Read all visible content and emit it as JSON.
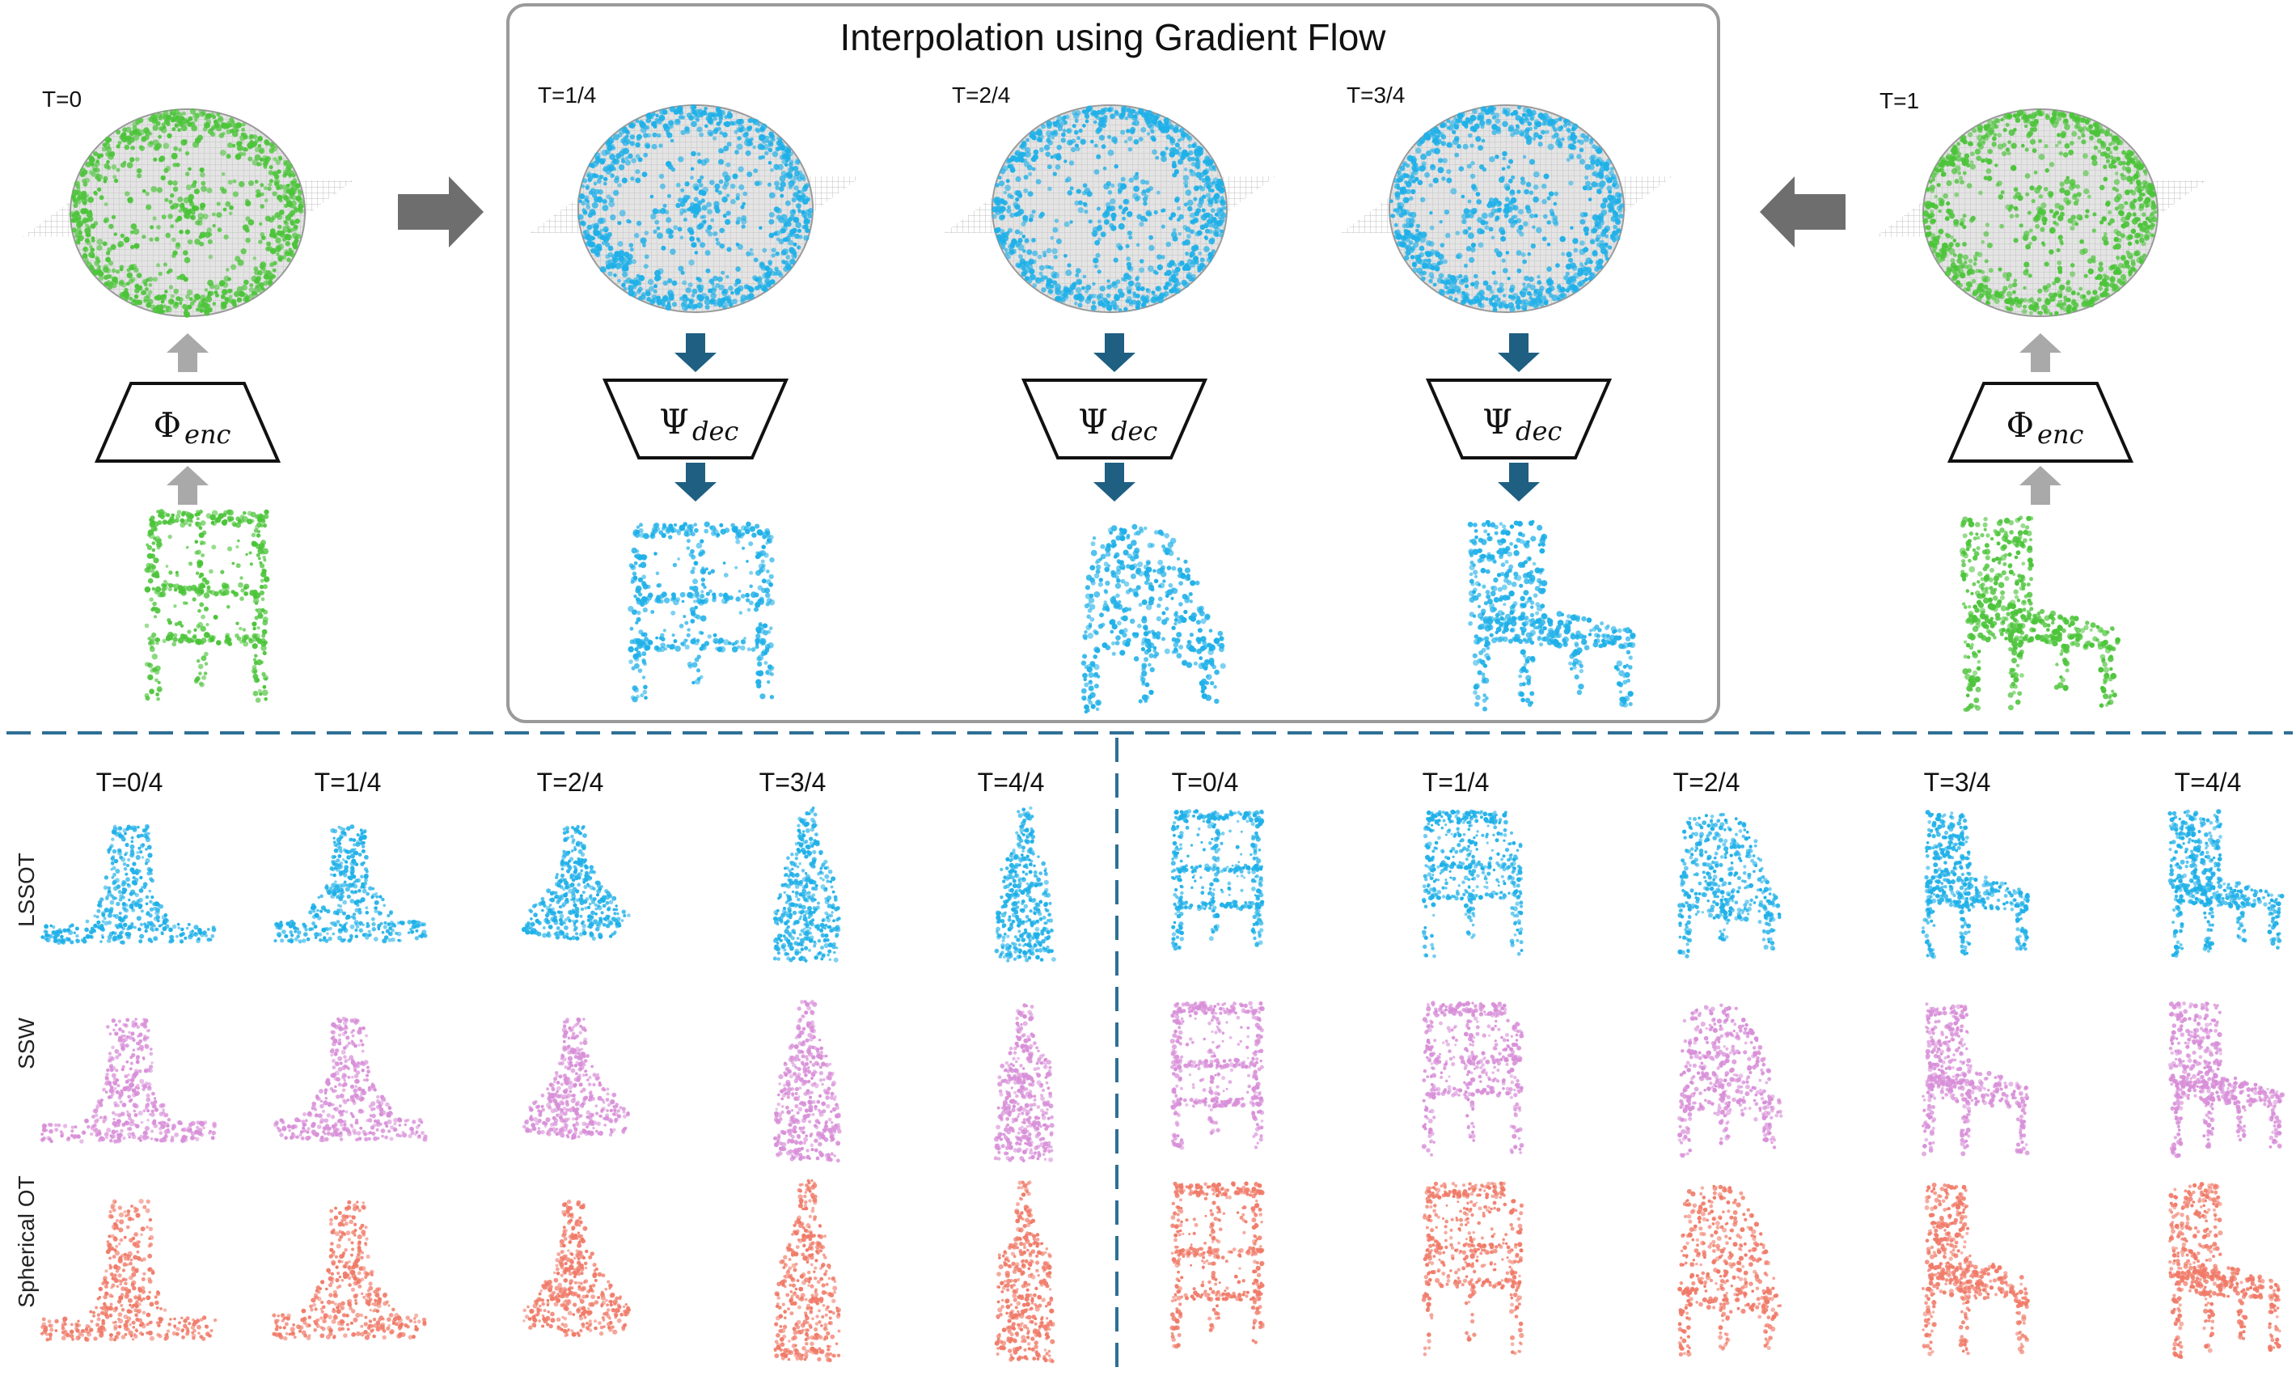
{
  "title": "Interpolation using Gradient Flow",
  "colors": {
    "green": "#4cc43a",
    "blue": "#1fb0e8",
    "purple": "#d88fd8",
    "salmon": "#f07a68",
    "arrow_dark": "#1e5f82",
    "arrow_gray": "#a9a9a9",
    "big_arrow": "#6e6e6e",
    "divider": "#2e6f95",
    "box_border": "#9a9a9a"
  },
  "top": {
    "columns": [
      {
        "label": "T=0",
        "color": "green",
        "shape": "stool",
        "module": "encoder",
        "math": "Φ",
        "sub": "enc"
      },
      {
        "label": "T=1/4",
        "color": "blue",
        "shape": "stool",
        "module": "decoder",
        "math": "Ψ",
        "sub": "dec"
      },
      {
        "label": "T=2/4",
        "color": "blue",
        "shape": "mid",
        "module": "decoder",
        "math": "Ψ",
        "sub": "dec"
      },
      {
        "label": "T=3/4",
        "color": "blue",
        "shape": "chair",
        "module": "decoder",
        "math": "Ψ",
        "sub": "dec"
      },
      {
        "label": "T=1",
        "color": "green",
        "shape": "chair",
        "module": "encoder",
        "math": "Φ",
        "sub": "enc"
      }
    ]
  },
  "bottom": {
    "time_labels": [
      "T=0/4",
      "T=1/4",
      "T=2/4",
      "T=3/4",
      "T=4/4"
    ],
    "rows": [
      {
        "label": "LSSOT",
        "color": "blue"
      },
      {
        "label": "SSW",
        "color": "purple"
      },
      {
        "label": "Spherical OT",
        "color": "salmon"
      }
    ],
    "left_shapes": [
      "table",
      "table2",
      "vase",
      "bottle_wide",
      "bottle"
    ],
    "right_shapes": [
      "stool",
      "stool2",
      "mid",
      "chair2",
      "chair"
    ]
  }
}
